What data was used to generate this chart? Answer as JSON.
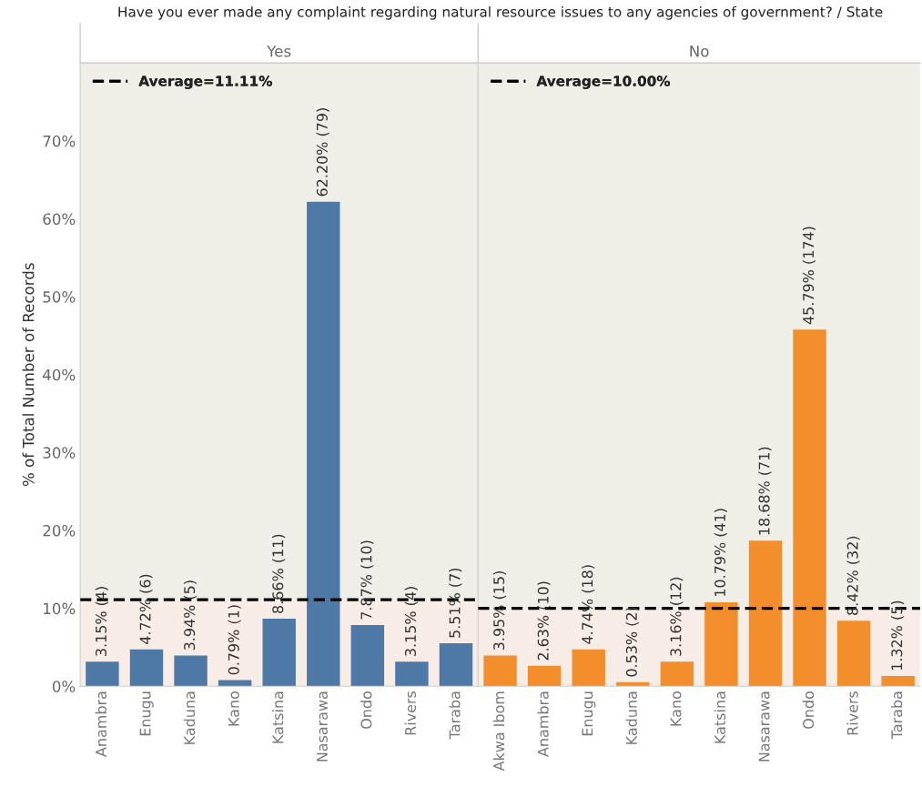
{
  "chart_data": [
    {
      "type": "bar",
      "title": "Have you ever made any complaint regarding natural resource issues to any agencies of government? / State",
      "subtitle": "Yes",
      "ylabel": "% of Total Number of Records",
      "categories": [
        "Anambra",
        "Enugu",
        "Kaduna",
        "Kano",
        "Katsina",
        "Nasarawa",
        "Ondo",
        "Rivers",
        "Taraba"
      ],
      "values": [
        3.15,
        4.72,
        3.94,
        0.79,
        8.66,
        62.2,
        7.87,
        3.15,
        5.51
      ],
      "color": "#4e79a7",
      "value_labels": [
        "3.15% (4)",
        "4.72% (6)",
        "3.94% (5)",
        "0.79% (1)",
        "8.66% (11)",
        "62.20% (79)",
        "7.87% (10)",
        "3.15% (4)",
        "5.51% (7)"
      ],
      "ylim": [
        0,
        80
      ],
      "yticks": [
        {
          "value": 0,
          "label": "0%"
        },
        {
          "value": 10,
          "label": "10%"
        },
        {
          "value": 20,
          "label": "20%"
        },
        {
          "value": 30,
          "label": "30%"
        },
        {
          "value": 40,
          "label": "40%"
        },
        {
          "value": 50,
          "label": "50%"
        },
        {
          "value": 60,
          "label": "60%"
        },
        {
          "value": 70,
          "label": "70%"
        }
      ],
      "ref_lines": [
        {
          "axis": "y",
          "value": 11.11,
          "label": "Average=11.11%",
          "color": "#000000",
          "line_style": "dashed"
        }
      ],
      "bands": [
        {
          "axis": "y",
          "from": 0,
          "to": 11.11,
          "color": "#f8ece6"
        },
        {
          "axis": "y",
          "from": 11.11,
          "to": 80,
          "color": "#efefe8"
        }
      ],
      "grid": false,
      "legend": "top left"
    },
    {
      "type": "bar",
      "subtitle": "No",
      "categories": [
        "Akwa Ibom",
        "Anambra",
        "Enugu",
        "Kaduna",
        "Kano",
        "Katsina",
        "Nasarawa",
        "Ondo",
        "Rivers",
        "Taraba"
      ],
      "values": [
        3.95,
        2.63,
        4.74,
        0.53,
        3.16,
        10.79,
        18.68,
        45.79,
        8.42,
        1.32
      ],
      "color": "#f28e2b",
      "value_labels": [
        "3.95% (15)",
        "2.63% (10)",
        "4.74% (18)",
        "0.53% (2)",
        "3.16% (12)",
        "10.79% (41)",
        "18.68% (71)",
        "45.79% (174)",
        "8.42% (32)",
        "1.32% (5)"
      ],
      "ylim": [
        0,
        80
      ],
      "tick_labels": "x",
      "ref_lines": [
        {
          "axis": "y",
          "value": 10.0,
          "label": "Average=10.00%",
          "color": "#000000",
          "line_style": "dashed"
        }
      ],
      "bands": [
        {
          "axis": "y",
          "from": 0,
          "to": 10.0,
          "color": "#f8ece6"
        },
        {
          "axis": "y",
          "from": 10.0,
          "to": 80,
          "color": "#efefe8"
        }
      ],
      "grid": false,
      "legend": "top left"
    }
  ]
}
